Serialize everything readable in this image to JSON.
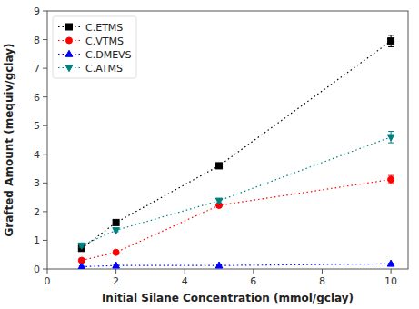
{
  "chart_data": {
    "type": "line",
    "xlabel": "Initial Silane Concentration (mmol/gclay)",
    "ylabel": "Grafted Amount (mequiv/gclay)",
    "x": [
      1,
      2,
      5,
      10
    ],
    "series": [
      {
        "name": "C.ETMS",
        "color": "#000000",
        "marker": "square",
        "line_style": "dotted",
        "values": [
          0.72,
          1.62,
          3.6,
          7.95
        ],
        "errors": [
          0.05,
          0.05,
          0.08,
          0.2
        ]
      },
      {
        "name": "C.VTMS",
        "color": "#ff0000",
        "marker": "circle",
        "line_style": "dotted",
        "values": [
          0.3,
          0.58,
          2.22,
          3.12
        ],
        "errors": [
          0.04,
          0.04,
          0.06,
          0.14
        ]
      },
      {
        "name": "C.DMEVS",
        "color": "#0000ff",
        "marker": "triangle-up",
        "line_style": "dotted",
        "values": [
          0.08,
          0.12,
          0.12,
          0.18
        ],
        "errors": [
          0.02,
          0.02,
          0.02,
          0.02
        ]
      },
      {
        "name": "C.ATMS",
        "color": "#008080",
        "marker": "triangle-down",
        "line_style": "dotted",
        "values": [
          0.82,
          1.35,
          2.38,
          4.6
        ],
        "errors": [
          0.06,
          0.05,
          0.07,
          0.2
        ]
      }
    ],
    "xlim": [
      0,
      10.5
    ],
    "ylim": [
      0,
      9
    ],
    "xticks": [
      0,
      2,
      4,
      6,
      8,
      10
    ],
    "yticks": [
      0,
      1,
      2,
      3,
      4,
      5,
      6,
      7,
      8,
      9
    ],
    "grid": false,
    "legend": "upper left"
  }
}
